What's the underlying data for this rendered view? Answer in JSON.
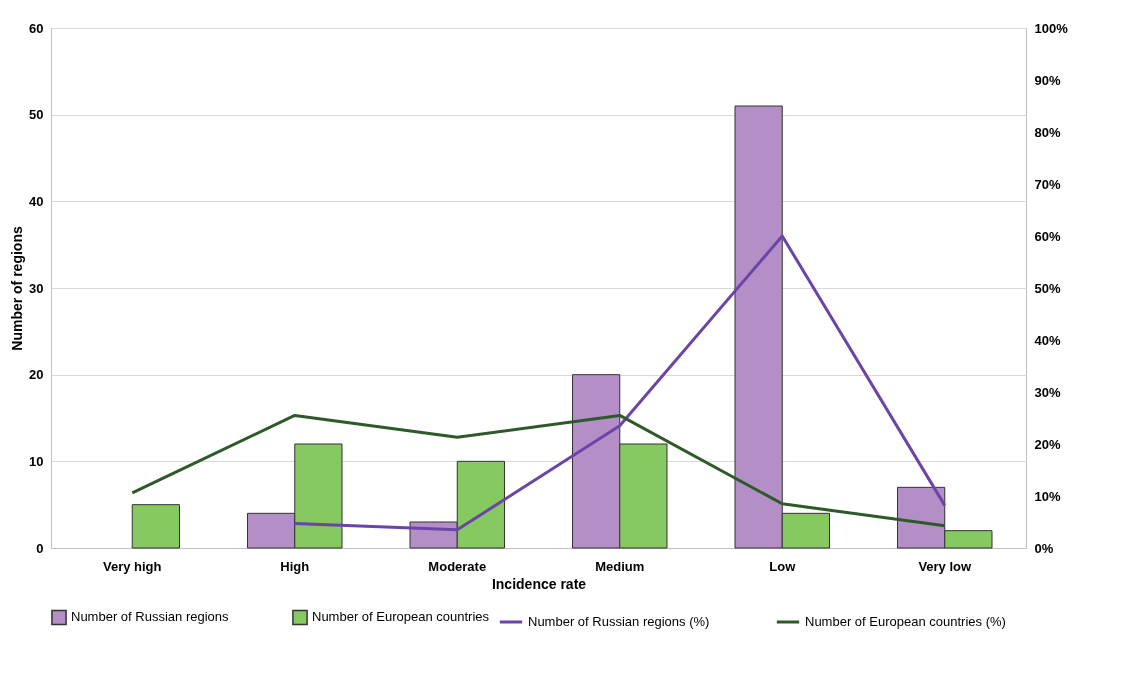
{
  "chart_data": {
    "type": "bar",
    "xlabel": "Incidence rate",
    "ylabel": "Number of regions",
    "categories": [
      "Very high",
      "High",
      "Moderate",
      "Medium",
      "Low",
      "Very low"
    ],
    "series": [
      {
        "name": "Number of Russian regions",
        "color": "#b48fc7",
        "values": [
          null,
          4,
          3,
          20,
          51,
          7
        ]
      },
      {
        "name": "Number of European countries",
        "color": "#86c960",
        "values": [
          5,
          12,
          10,
          12,
          4,
          2
        ]
      },
      {
        "name": "Number of Russian regions (%)",
        "type": "line",
        "axis": "y2",
        "color": "#6a45a6",
        "values": [
          null,
          4.7,
          3.5,
          23.5,
          60,
          8.2
        ]
      },
      {
        "name": "Number of European countries (%)",
        "type": "line",
        "axis": "y2",
        "color": "#2e5a2a",
        "values": [
          10.6,
          25.5,
          21.3,
          25.5,
          8.5,
          4.3
        ]
      }
    ],
    "ylim": [
      0,
      60
    ],
    "yticks": [
      0,
      10,
      20,
      30,
      40,
      50,
      60
    ],
    "y2lim": [
      0,
      100
    ],
    "y2ticks": [
      {
        "value": 0,
        "label": "0%"
      },
      {
        "value": 10,
        "label": "10%"
      },
      {
        "value": 20,
        "label": "20%"
      },
      {
        "value": 30,
        "label": "30%"
      },
      {
        "value": 40,
        "label": "40%"
      },
      {
        "value": 50,
        "label": "50%"
      },
      {
        "value": 60,
        "label": "60%"
      },
      {
        "value": 70,
        "label": "70%"
      },
      {
        "value": 80,
        "label": "80%"
      },
      {
        "value": 90,
        "label": "90%"
      },
      {
        "value": 100,
        "label": "100%"
      }
    ],
    "grid": "y",
    "legend": "bottom"
  }
}
